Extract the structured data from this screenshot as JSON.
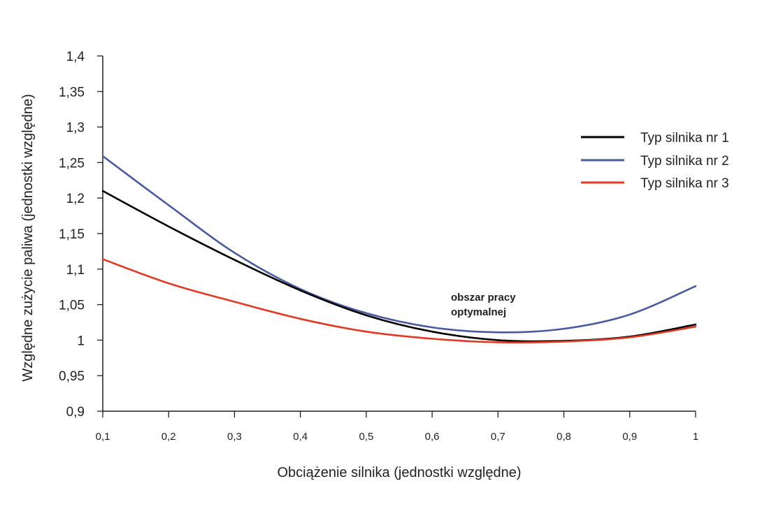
{
  "chart_data": {
    "type": "line",
    "title": "",
    "xlabel": "Obciążenie silnika (jednostki względne)",
    "ylabel": "Względne zużycie paliwa (jednostki względne)",
    "xlim": [
      0.1,
      1.0
    ],
    "ylim": [
      0.9,
      1.4
    ],
    "x_tick_values": [
      0.1,
      0.2,
      0.3,
      0.4,
      0.5,
      0.6,
      0.7,
      0.8,
      0.9,
      1.0
    ],
    "x_tick_labels": [
      "0,1",
      "0,2",
      "0,3",
      "0,4",
      "0,5",
      "0,6",
      "0,7",
      "0,8",
      "0,9",
      "1"
    ],
    "y_tick_values": [
      0.9,
      0.95,
      1.0,
      1.05,
      1.1,
      1.15,
      1.2,
      1.25,
      1.3,
      1.35,
      1.4
    ],
    "y_tick_labels": [
      "0,9",
      "0,95",
      "1",
      "1,05",
      "1,1",
      "1,15",
      "1,2",
      "1,25",
      "1,3",
      "1,35",
      "1,4"
    ],
    "grid": false,
    "legend_position": "right",
    "annotations": [
      {
        "lines": [
          "obszar pracy",
          "optymalnej"
        ],
        "x": 0.7,
        "y": 1.05
      }
    ],
    "x": [
      0.1,
      0.2,
      0.3,
      0.4,
      0.5,
      0.6,
      0.7,
      0.8,
      0.9,
      1.0
    ],
    "series": [
      {
        "name": "Typ silnika nr 1",
        "color": "#000000",
        "values": [
          1.21,
          1.16,
          1.113,
          1.07,
          1.035,
          1.012,
          1.0,
          0.999,
          1.005,
          1.022
        ]
      },
      {
        "name": "Typ silnika nr 2",
        "color": "#4a5a9e",
        "values": [
          1.259,
          1.19,
          1.123,
          1.072,
          1.038,
          1.018,
          1.011,
          1.016,
          1.036,
          1.076
        ]
      },
      {
        "name": "Typ silnika nr 3",
        "color": "#e03a24",
        "values": [
          1.114,
          1.08,
          1.054,
          1.03,
          1.012,
          1.002,
          0.997,
          0.998,
          1.004,
          1.019
        ]
      }
    ]
  }
}
